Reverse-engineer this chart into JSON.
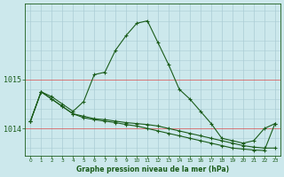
{
  "title": "Graphe pression niveau de la mer (hPa)",
  "background_color": "#cce8ec",
  "grid_color": "#aaccd4",
  "red_line_color": "#dd4444",
  "line_color": "#1a5c1a",
  "x_labels": [
    "0",
    "1",
    "2",
    "3",
    "4",
    "5",
    "6",
    "7",
    "8",
    "9",
    "10",
    "11",
    "12",
    "13",
    "14",
    "15",
    "16",
    "17",
    "18",
    "19",
    "20",
    "21",
    "22",
    "23"
  ],
  "yticks": [
    1014,
    1015
  ],
  "ylim": [
    1013.45,
    1016.55
  ],
  "xlim": [
    -0.5,
    23.5
  ],
  "series": [
    [
      1014.15,
      1014.75,
      1014.65,
      1014.5,
      1014.35,
      1014.55,
      1015.1,
      1015.15,
      1015.6,
      1015.9,
      1016.15,
      1016.2,
      1015.75,
      1015.3,
      1014.8,
      1014.6,
      1014.35,
      1014.1,
      1013.8,
      1013.75,
      1013.7,
      1013.75,
      1014.0,
      1014.1
    ],
    [
      1014.15,
      1014.75,
      1014.6,
      1014.45,
      1014.3,
      1014.25,
      1014.2,
      1014.18,
      1014.15,
      1014.12,
      1014.1,
      1014.08,
      1014.05,
      1014.0,
      1013.95,
      1013.9,
      1013.85,
      1013.8,
      1013.75,
      1013.7,
      1013.65,
      1013.62,
      1013.6,
      1013.6
    ],
    [
      1014.15,
      1014.75,
      1014.6,
      1014.45,
      1014.3,
      1014.22,
      1014.18,
      1014.15,
      1014.12,
      1014.08,
      1014.05,
      1014.0,
      1013.95,
      1013.9,
      1013.85,
      1013.8,
      1013.75,
      1013.7,
      1013.65,
      1013.6,
      1013.58,
      1013.56,
      1013.55,
      1014.1
    ]
  ],
  "marker": "+"
}
